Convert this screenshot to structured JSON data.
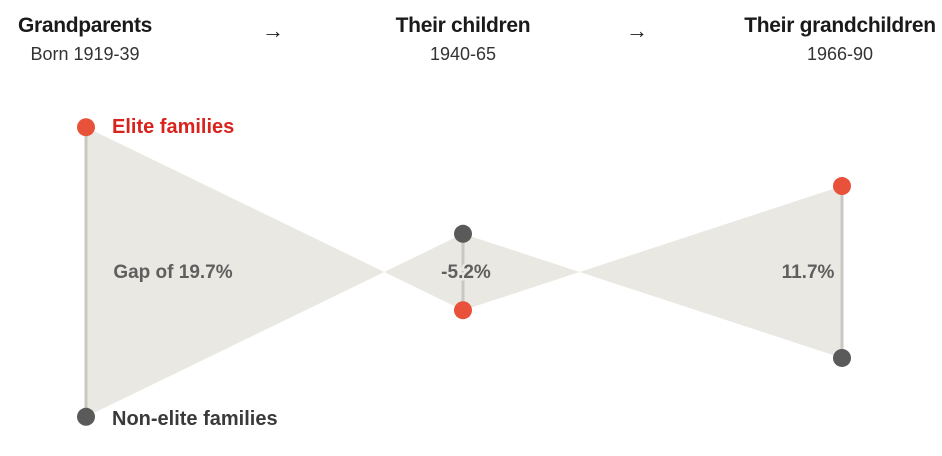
{
  "headers": [
    {
      "title": "Grandparents",
      "subtitle": "Born 1919-39"
    },
    {
      "title": "Their children",
      "subtitle": "1940-65"
    },
    {
      "title": "Their grandchildren",
      "subtitle": "1966-90"
    }
  ],
  "arrow_glyph": "→",
  "colors": {
    "elite": "#e8523a",
    "elite_label": "#d9231d",
    "nonelite": "#5a5a5a",
    "gap_fill": "#e9e8e3",
    "line": "#c9c7c1",
    "gap_text": "#5f5f5f"
  },
  "chart_data": {
    "type": "gap-comparison",
    "series": [
      {
        "name": "Elite families"
      },
      {
        "name": "Non-elite families"
      }
    ],
    "categories": [
      "Grandparents",
      "Their children",
      "Their grandchildren"
    ],
    "gaps": [
      19.7,
      -5.2,
      11.7
    ],
    "gap_labels": [
      "Gap of 19.7%",
      "-5.2%",
      "11.7%"
    ]
  }
}
